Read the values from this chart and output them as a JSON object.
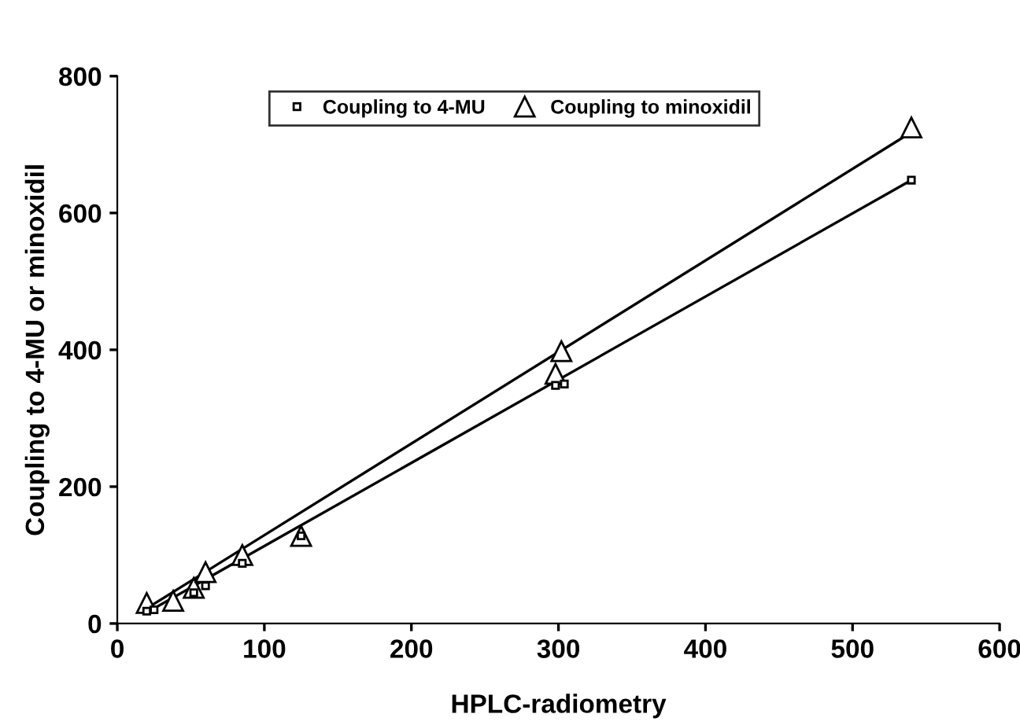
{
  "chart_data": {
    "type": "scatter",
    "xlabel": "HPLC-radiometry",
    "ylabel": "Coupling to 4-MU or minoxidil",
    "xlim": [
      0,
      600
    ],
    "ylim": [
      0,
      800
    ],
    "xticks": [
      0,
      100,
      200,
      300,
      400,
      500,
      600
    ],
    "yticks": [
      0,
      200,
      400,
      600,
      800
    ],
    "grid": false,
    "legend": "top",
    "series": [
      {
        "name": "Coupling to 4-MU",
        "color": "#000000",
        "marker": "square",
        "x": [
          20,
          25,
          52,
          60,
          85,
          125,
          298,
          304,
          540
        ],
        "values": [
          18,
          20,
          45,
          55,
          88,
          128,
          348,
          350,
          648
        ]
      },
      {
        "name": "Coupling to minoxidil",
        "color": "#000000",
        "marker": "triangle",
        "x": [
          20,
          38,
          52,
          60,
          85,
          125,
          298,
          302,
          540
        ],
        "values": [
          30,
          33,
          52,
          75,
          100,
          128,
          365,
          398,
          725
        ]
      },
      {
        "type": "line",
        "color": "#000000",
        "marker": "none",
        "x": [
          20,
          540
        ],
        "values": [
          16,
          648
        ]
      },
      {
        "type": "line",
        "color": "#000000",
        "marker": "none",
        "x": [
          20,
          540
        ],
        "values": [
          22,
          718
        ]
      }
    ]
  }
}
